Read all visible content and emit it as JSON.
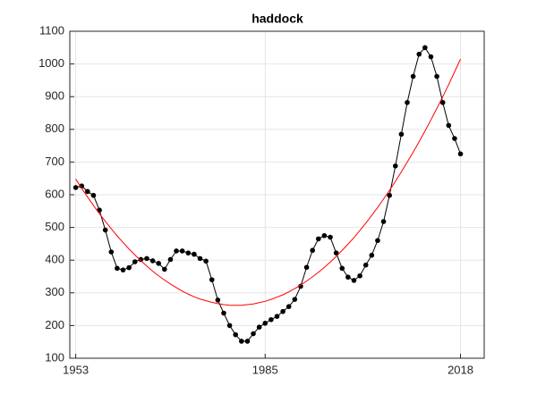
{
  "chart_data": {
    "type": "line",
    "title": "haddock",
    "x": [
      1953,
      1954,
      1955,
      1956,
      1957,
      1958,
      1959,
      1960,
      1961,
      1962,
      1963,
      1964,
      1965,
      1966,
      1967,
      1968,
      1969,
      1970,
      1971,
      1972,
      1973,
      1974,
      1975,
      1976,
      1977,
      1978,
      1979,
      1980,
      1981,
      1982,
      1983,
      1984,
      1985,
      1986,
      1987,
      1988,
      1989,
      1990,
      1991,
      1992,
      1993,
      1994,
      1995,
      1996,
      1997,
      1998,
      1999,
      2000,
      2001,
      2002,
      2003,
      2004,
      2005,
      2006,
      2007,
      2008,
      2009,
      2010,
      2011,
      2012,
      2013,
      2014,
      2015,
      2016,
      2017,
      2018
    ],
    "series": [
      {
        "color": "#000000",
        "marker": true,
        "values": [
          622,
          627,
          610,
          598,
          553,
          492,
          425,
          375,
          370,
          377,
          395,
          402,
          405,
          398,
          390,
          372,
          402,
          428,
          428,
          422,
          418,
          405,
          397,
          340,
          278,
          238,
          200,
          172,
          152,
          152,
          175,
          195,
          207,
          218,
          228,
          243,
          258,
          280,
          320,
          378,
          430,
          465,
          475,
          470,
          422,
          375,
          348,
          338,
          352,
          385,
          415,
          460,
          518,
          598,
          688,
          785,
          882,
          962,
          1030,
          1050,
          1022,
          962,
          882,
          812,
          772,
          725
        ]
      },
      {
        "color": "#ff0000",
        "marker": false,
        "values": [
          648,
          620,
          593,
          567,
          542,
          519,
          496,
          474,
          454,
          434,
          416,
          398,
          382,
          366,
          352,
          339,
          327,
          316,
          305,
          296,
          288,
          281,
          276,
          271,
          267,
          264,
          262,
          262,
          262,
          264,
          266,
          270,
          274,
          280,
          287,
          294,
          303,
          313,
          324,
          336,
          349,
          363,
          378,
          394,
          411,
          430,
          449,
          469,
          491,
          513,
          537,
          561,
          587,
          613,
          641,
          670,
          700,
          730,
          762,
          795,
          829,
          864,
          900,
          937,
          976,
          1015
        ]
      }
    ],
    "xlim": [
      1952,
      2022
    ],
    "xticks": [
      1953,
      1985,
      2018
    ],
    "ylim": [
      100,
      1100
    ],
    "yticks": [
      100,
      200,
      300,
      400,
      500,
      600,
      700,
      800,
      900,
      1000,
      1100
    ],
    "grid": true
  }
}
